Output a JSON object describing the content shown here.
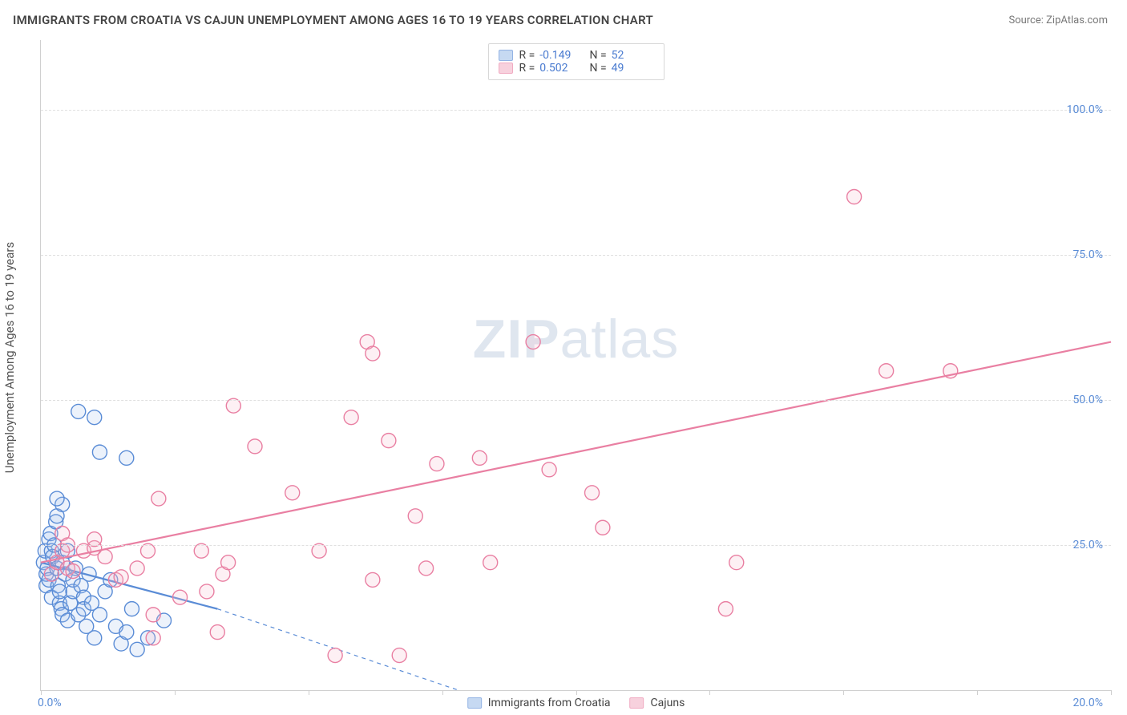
{
  "title": "IMMIGRANTS FROM CROATIA VS CAJUN UNEMPLOYMENT AMONG AGES 16 TO 19 YEARS CORRELATION CHART",
  "source_label": "Source: ",
  "source_name": "ZipAtlas.com",
  "ylabel": "Unemployment Among Ages 16 to 19 years",
  "watermark_a": "ZIP",
  "watermark_b": "atlas",
  "chart": {
    "type": "scatter",
    "xlim": [
      0,
      20
    ],
    "ylim": [
      0,
      112
    ],
    "x_tick_label_min": "0.0%",
    "x_tick_label_max": "20.0%",
    "x_ticks": [
      0,
      2.5,
      5,
      7.5,
      10,
      12.5,
      15,
      17.5,
      20
    ],
    "y_ticks": [
      {
        "v": 25,
        "label": "25.0%"
      },
      {
        "v": 50,
        "label": "50.0%"
      },
      {
        "v": 75,
        "label": "75.0%"
      },
      {
        "v": 100,
        "label": "100.0%"
      }
    ],
    "grid_color": "#e0e0e0",
    "background_color": "#ffffff",
    "marker_radius": 9,
    "marker_fill_opacity": 0.22,
    "marker_stroke_width": 1.4,
    "trend_line_width": 2.2,
    "series": [
      {
        "name": "Immigrants from Croatia",
        "color_stroke": "#5a8cd6",
        "color_fill": "#a9c5ec",
        "R": "-0.149",
        "N": "52",
        "trend": {
          "x1": 0,
          "y1": 22,
          "x2": 3.3,
          "y2": 14,
          "dash_extend_x2": 7.8,
          "dash_extend_y2": 0
        },
        "points": [
          [
            0.05,
            22
          ],
          [
            0.08,
            24
          ],
          [
            0.1,
            18
          ],
          [
            0.1,
            20
          ],
          [
            0.12,
            21
          ],
          [
            0.15,
            19
          ],
          [
            0.15,
            26
          ],
          [
            0.18,
            27
          ],
          [
            0.2,
            24
          ],
          [
            0.2,
            16
          ],
          [
            0.22,
            23
          ],
          [
            0.25,
            25
          ],
          [
            0.28,
            29
          ],
          [
            0.3,
            30
          ],
          [
            0.3,
            21
          ],
          [
            0.32,
            18
          ],
          [
            0.35,
            15
          ],
          [
            0.35,
            17
          ],
          [
            0.38,
            14
          ],
          [
            0.4,
            22
          ],
          [
            0.4,
            13
          ],
          [
            0.45,
            20
          ],
          [
            0.5,
            24
          ],
          [
            0.5,
            12
          ],
          [
            0.55,
            15
          ],
          [
            0.6,
            17
          ],
          [
            0.6,
            19
          ],
          [
            0.65,
            21
          ],
          [
            0.7,
            13
          ],
          [
            0.7,
            48
          ],
          [
            0.75,
            18
          ],
          [
            0.8,
            16
          ],
          [
            0.8,
            14
          ],
          [
            0.85,
            11
          ],
          [
            0.9,
            20
          ],
          [
            0.95,
            15
          ],
          [
            1.0,
            47
          ],
          [
            1.0,
            9
          ],
          [
            1.1,
            41
          ],
          [
            1.1,
            13
          ],
          [
            1.2,
            17
          ],
          [
            1.3,
            19
          ],
          [
            1.4,
            11
          ],
          [
            1.5,
            8
          ],
          [
            1.6,
            40
          ],
          [
            1.6,
            10
          ],
          [
            1.7,
            14
          ],
          [
            1.8,
            7
          ],
          [
            2.0,
            9
          ],
          [
            2.3,
            12
          ],
          [
            0.4,
            32
          ],
          [
            0.3,
            33
          ]
        ]
      },
      {
        "name": "Cajuns",
        "color_stroke": "#e97fa2",
        "color_fill": "#f4b9cb",
        "R": "0.502",
        "N": "49",
        "trend": {
          "x1": 0,
          "y1": 22,
          "x2": 20,
          "y2": 60
        },
        "points": [
          [
            0.2,
            20
          ],
          [
            0.3,
            22
          ],
          [
            0.4,
            24
          ],
          [
            0.5,
            21
          ],
          [
            0.6,
            20.5
          ],
          [
            0.8,
            24
          ],
          [
            1.0,
            24.5
          ],
          [
            1.2,
            23
          ],
          [
            1.4,
            19
          ],
          [
            1.5,
            19.5
          ],
          [
            1.8,
            21
          ],
          [
            2.0,
            24
          ],
          [
            2.1,
            13
          ],
          [
            2.1,
            9
          ],
          [
            2.2,
            33
          ],
          [
            2.6,
            16
          ],
          [
            3.0,
            24
          ],
          [
            3.1,
            17
          ],
          [
            3.3,
            10
          ],
          [
            3.4,
            20
          ],
          [
            3.5,
            22
          ],
          [
            3.6,
            49
          ],
          [
            4.0,
            42
          ],
          [
            4.7,
            34
          ],
          [
            5.2,
            24
          ],
          [
            5.5,
            6
          ],
          [
            5.8,
            47
          ],
          [
            6.1,
            60
          ],
          [
            6.2,
            58
          ],
          [
            6.2,
            19
          ],
          [
            6.5,
            43
          ],
          [
            7.0,
            30
          ],
          [
            7.2,
            21
          ],
          [
            7.4,
            39
          ],
          [
            8.2,
            40
          ],
          [
            8.4,
            22
          ],
          [
            9.2,
            60
          ],
          [
            9.5,
            38
          ],
          [
            10.3,
            34
          ],
          [
            10.5,
            28
          ],
          [
            12.8,
            14
          ],
          [
            13.0,
            22
          ],
          [
            15.2,
            85
          ],
          [
            15.8,
            55
          ],
          [
            17.0,
            55
          ],
          [
            6.7,
            6
          ],
          [
            0.4,
            27
          ],
          [
            0.5,
            25
          ],
          [
            1.0,
            26
          ]
        ]
      }
    ]
  },
  "legend_top_labels": {
    "R": "R =",
    "N": "N ="
  }
}
